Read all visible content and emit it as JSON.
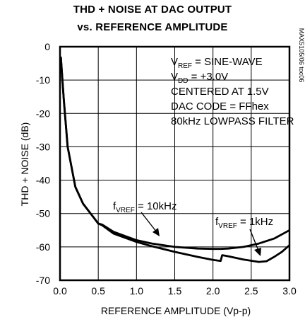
{
  "chart_data": {
    "type": "line",
    "title_line1": "THD + NOISE AT DAC OUTPUT",
    "title_line2": "vs. REFERENCE AMPLITUDE",
    "xlabel": "REFERENCE AMPLITUDE (Vp-p)",
    "ylabel": "THD + NOISE (dB)",
    "xlim": [
      0,
      3.0
    ],
    "ylim": [
      -70,
      0
    ],
    "x_ticks": [
      "0.0",
      "0.5",
      "1.0",
      "1.5",
      "2.0",
      "2.5",
      "3.0"
    ],
    "y_ticks": [
      "0",
      "-10",
      "-20",
      "-30",
      "-40",
      "-50",
      "-60",
      "-70"
    ],
    "grid": true,
    "side_label": "MAX5105/06 toc06",
    "conditions": {
      "vref": {
        "main": "V",
        "sub": "REF",
        "rest": " = SINE-WAVE"
      },
      "vdd": {
        "main": "V",
        "sub": "DD",
        "rest": " = +3.0V"
      },
      "line3": "CENTERED AT 1.5V",
      "line4": "DAC CODE = FFhex",
      "line5": "80kHz LOWPASS FILTER"
    },
    "series": [
      {
        "label_main": "f",
        "label_sub": "VREF",
        "label_rest": " = 10kHz",
        "x": [
          0.01,
          0.05,
          0.1,
          0.2,
          0.3,
          0.5,
          0.55,
          0.7,
          1.0,
          1.2,
          1.5,
          1.8,
          2.0,
          2.1,
          2.2,
          2.4,
          2.6,
          2.8,
          3.0
        ],
        "y": [
          -3,
          -16,
          -30,
          -42,
          -47,
          -53,
          -53.3,
          -55.5,
          -58,
          -59,
          -60,
          -60.5,
          -60.6,
          -60.6,
          -60.5,
          -60,
          -59,
          -57.5,
          -55
        ]
      },
      {
        "label_main": "f",
        "label_sub": "VREF",
        "label_rest": " = 1kHz",
        "x": [
          0.01,
          0.05,
          0.1,
          0.2,
          0.3,
          0.5,
          0.55,
          0.7,
          1.0,
          1.2,
          1.5,
          1.8,
          2.0,
          2.1,
          2.12,
          2.15,
          2.2,
          2.4,
          2.6,
          2.7,
          2.8,
          2.9,
          3.0
        ],
        "y": [
          -3,
          -16,
          -30,
          -42,
          -47,
          -53,
          -53.5,
          -56,
          -58.5,
          -59.8,
          -61.5,
          -63,
          -63.9,
          -64.2,
          -62.5,
          -62.6,
          -62.8,
          -63.8,
          -64.5,
          -64.3,
          -63,
          -61.5,
          -59.5
        ]
      }
    ]
  },
  "colors": {
    "line": "#000000",
    "grid": "#000000"
  }
}
